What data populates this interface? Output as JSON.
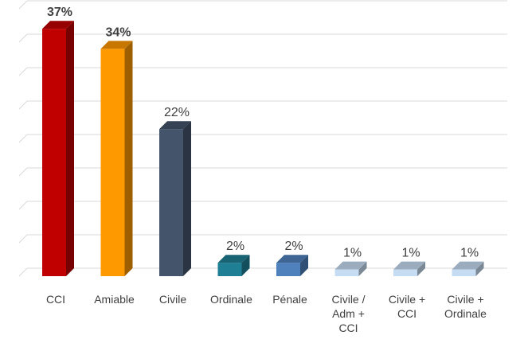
{
  "chart_data": {
    "type": "bar",
    "title": "",
    "xlabel": "",
    "ylabel": "",
    "ylim": [
      0,
      40
    ],
    "grid": true,
    "legend": "none",
    "categories": [
      [
        "CCI"
      ],
      [
        "Amiable"
      ],
      [
        "Civile"
      ],
      [
        "Ordinale"
      ],
      [
        "Pénale"
      ],
      [
        "Civile /",
        "Adm +",
        "CCI"
      ],
      [
        "Civile +",
        "CCI"
      ],
      [
        "Civile +",
        "Ordinale"
      ]
    ],
    "values": [
      37,
      34,
      22,
      2,
      2,
      1,
      1,
      1
    ],
    "value_labels": [
      "37%",
      "34%",
      "22%",
      "2%",
      "2%",
      "1%",
      "1%",
      "1%"
    ],
    "bold_labels": [
      true,
      true,
      false,
      false,
      false,
      false,
      false,
      false
    ],
    "colors": [
      "#c00000",
      "#ff9900",
      "#44546a",
      "#1f7f95",
      "#4f81bd",
      "#c6dcf2",
      "#c6dcf2",
      "#c6dcf2"
    ]
  }
}
